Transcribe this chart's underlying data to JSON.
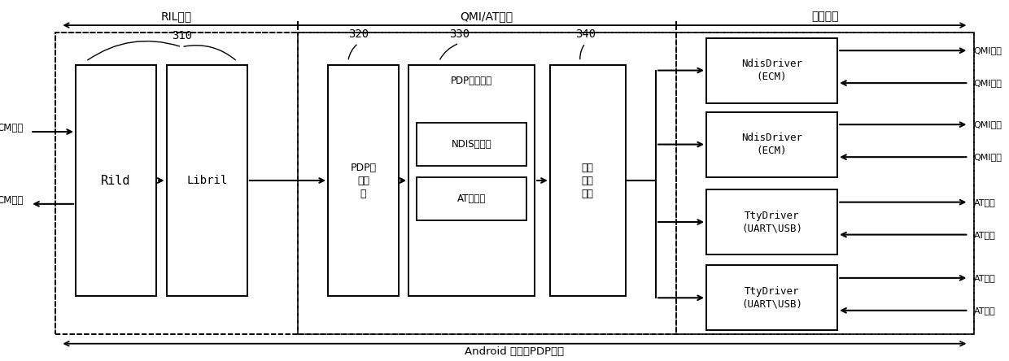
{
  "fig_width": 12.4,
  "fig_height": 4.44,
  "bg_color": "#ffffff",
  "section_labels": [
    "RIL框架",
    "QMI/AT实现",
    "设备驱动"
  ],
  "bottom_label": "Android 系统多PDP框图",
  "ref_numbers": [
    "310",
    "320",
    "330",
    "340"
  ],
  "cm_req": "CM请求",
  "cm_resp": "CM响应",
  "rild_label": "Rild",
  "libril_label": "Libril",
  "pdp_mgmt_label": "PDP管\n理模\n块",
  "pdp_ctrl_top_label": "PDP控制模块",
  "ndis_label": "NDIS子模块",
  "at_label": "AT子模块",
  "dev_mgmt_label": "设备\n管理\n模块",
  "driver_labels": [
    "NdisDriver\n(ECM)",
    "NdisDriver\n(ECM)",
    "TtyDriver\n(UART\\USB)",
    "TtyDriver\n(UART\\USB)"
  ],
  "right_arrow_labels": [
    [
      "QMI请求",
      true
    ],
    [
      "QMI响应",
      false
    ],
    [
      "QMI请求",
      true
    ],
    [
      "QMI响应",
      false
    ],
    [
      "AT请求",
      true
    ],
    [
      "AT响应",
      false
    ],
    [
      "AT请求",
      true
    ],
    [
      "AT响应",
      false
    ]
  ]
}
